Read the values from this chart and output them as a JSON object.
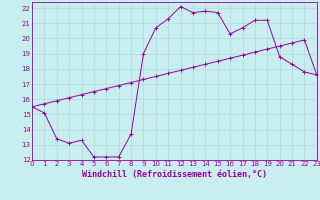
{
  "bg_color": "#c8eef0",
  "grid_color": "#b0d8dc",
  "line_color": "#990099",
  "line1_x": [
    0,
    1,
    2,
    3,
    4,
    5,
    6,
    7,
    8,
    9,
    10,
    11,
    12,
    13,
    14,
    15,
    16,
    17,
    18,
    19,
    20,
    21,
    22,
    23
  ],
  "line1_y": [
    15.5,
    15.1,
    13.4,
    13.1,
    13.3,
    12.2,
    12.2,
    12.2,
    13.7,
    19.0,
    20.7,
    21.3,
    22.1,
    21.7,
    21.8,
    21.7,
    20.3,
    20.7,
    21.2,
    21.2,
    18.8,
    18.3,
    17.8,
    17.6
  ],
  "line2_x": [
    0,
    1,
    2,
    3,
    4,
    5,
    6,
    7,
    8,
    9,
    10,
    11,
    12,
    13,
    14,
    15,
    16,
    17,
    18,
    19,
    20,
    21,
    22,
    23
  ],
  "line2_y": [
    15.5,
    15.7,
    15.9,
    16.1,
    16.3,
    16.5,
    16.7,
    16.9,
    17.1,
    17.3,
    17.5,
    17.7,
    17.9,
    18.1,
    18.3,
    18.5,
    18.7,
    18.9,
    19.1,
    19.3,
    19.5,
    19.7,
    19.9,
    17.6
  ],
  "xlim": [
    0,
    23
  ],
  "ylim": [
    12,
    22.4
  ],
  "yticks": [
    12,
    13,
    14,
    15,
    16,
    17,
    18,
    19,
    20,
    21,
    22
  ],
  "xticks": [
    0,
    1,
    2,
    3,
    4,
    5,
    6,
    7,
    8,
    9,
    10,
    11,
    12,
    13,
    14,
    15,
    16,
    17,
    18,
    19,
    20,
    21,
    22,
    23
  ],
  "xlabel": "Windchill (Refroidissement éolien,°C)",
  "tick_label_size": 5.0,
  "xlabel_size": 6.0
}
